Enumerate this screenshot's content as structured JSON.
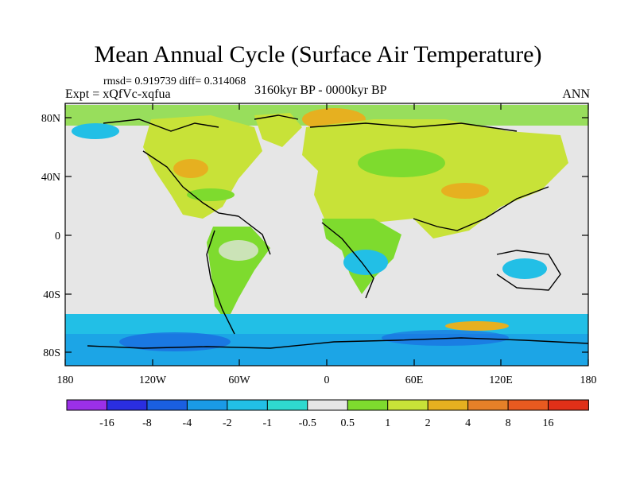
{
  "title": "Mean Annual Cycle (Surface Air Temperature)",
  "stats": "rmsd= 0.919739  diff= 0.314068",
  "experiment": "Expt = xQfVc-xqfua",
  "period": "3160kyr BP - 0000kyr BP",
  "season": "ANN",
  "lat_labels": [
    "80N",
    "40N",
    "0",
    "40S",
    "80S"
  ],
  "lon_labels": [
    "180",
    "120W",
    "60W",
    "0",
    "60E",
    "120E",
    "180"
  ],
  "colorbar": {
    "labels": [
      "-16",
      "-8",
      "-4",
      "-2",
      "-1",
      "-0.5",
      "0.5",
      "1",
      "2",
      "4",
      "8",
      "16"
    ],
    "colors": [
      "#9b30e8",
      "#2a2ee0",
      "#1a5fe0",
      "#1a9ae6",
      "#22bfe6",
      "#2fd9cf",
      "#e6e6e6",
      "#7edb2e",
      "#c8e238",
      "#e6b020",
      "#e68028",
      "#e85a20",
      "#e03018"
    ]
  }
}
